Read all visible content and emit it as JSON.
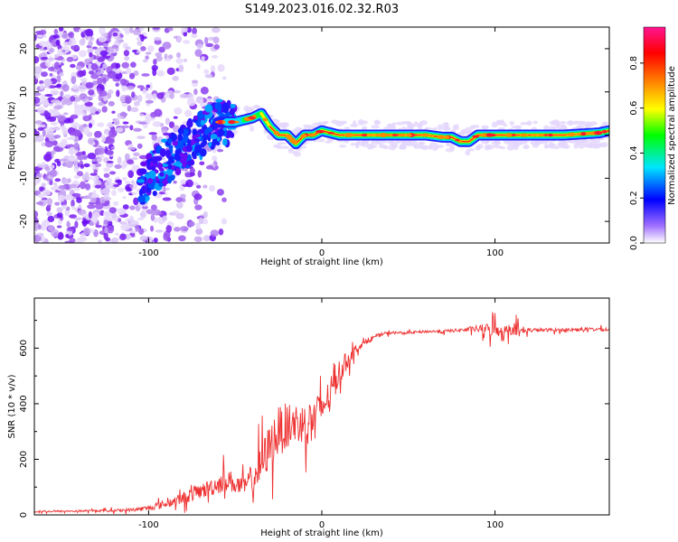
{
  "title": "S149.2023.016.02.32.R03",
  "chart_data": [
    {
      "type": "heatmap",
      "xlabel": "Height of straight line (km)",
      "ylabel": "Frequency (Hz)",
      "xlim": [
        -166,
        166
      ],
      "ylim": [
        -25,
        25
      ],
      "xticks": [
        -100,
        0,
        100
      ],
      "yticks": [
        -20,
        -10,
        0,
        10,
        20
      ],
      "colorbar": {
        "label": "Normalized spectral amplitude",
        "range": [
          0,
          0.96
        ],
        "ticks": [
          "0.0",
          "0.2",
          "0.4",
          "0.6",
          "0.8"
        ],
        "colors": [
          "#ffffff",
          "#8a2be2",
          "#0000ff",
          "#00e5ff",
          "#00ff00",
          "#ffff00",
          "#ff7f00",
          "#ff0000",
          "#ff1493"
        ]
      },
      "ridge": {
        "description_points_x": [
          -90,
          -80,
          -70,
          -60,
          -50,
          -40,
          -35,
          -30,
          -25,
          -20,
          -15,
          -10,
          -5,
          0,
          10,
          20,
          40,
          60,
          70,
          75,
          80,
          85,
          90,
          100,
          120,
          140,
          160,
          166
        ],
        "description_points_y": [
          -6,
          -3,
          0,
          3,
          3,
          4,
          5,
          2,
          0,
          0,
          -2,
          0,
          0,
          1,
          0,
          0,
          0,
          0,
          -0.5,
          -0.5,
          -1.5,
          -1.5,
          0,
          0,
          0,
          0,
          0.5,
          1
        ]
      }
    },
    {
      "type": "line",
      "xlabel": "Height of straight line (km)",
      "ylabel": "SNR (10 * v/v)",
      "xlim": [
        -166,
        166
      ],
      "ylim": [
        0,
        780
      ],
      "xticks": [
        -100,
        0,
        100
      ],
      "yticks": [
        0,
        200,
        400,
        600
      ],
      "series": [
        {
          "color": "#ee3030",
          "x": [
            -166,
            -150,
            -130,
            -120,
            -110,
            -100,
            -90,
            -80,
            -70,
            -60,
            -55,
            -50,
            -45,
            -40,
            -35,
            -30,
            -25,
            -20,
            -15,
            -10,
            -5,
            0,
            5,
            10,
            15,
            20,
            25,
            30,
            35,
            40,
            50,
            60,
            70,
            80,
            90,
            95,
            100,
            105,
            110,
            115,
            120,
            130,
            140,
            150,
            160,
            166
          ],
          "y": [
            12,
            13,
            15,
            16,
            18,
            25,
            40,
            60,
            85,
            110,
            130,
            110,
            100,
            130,
            180,
            250,
            300,
            320,
            330,
            330,
            350,
            380,
            440,
            510,
            560,
            600,
            620,
            640,
            650,
            655,
            655,
            660,
            660,
            665,
            670,
            665,
            670,
            660,
            675,
            660,
            665,
            665,
            665,
            668,
            668,
            665
          ],
          "noise_amplitude": [
            5,
            5,
            6,
            8,
            10,
            15,
            25,
            35,
            45,
            60,
            70,
            60,
            55,
            80,
            120,
            140,
            150,
            140,
            130,
            120,
            110,
            100,
            90,
            80,
            50,
            25,
            15,
            12,
            10,
            8,
            8,
            8,
            10,
            10,
            20,
            40,
            50,
            30,
            45,
            25,
            12,
            10,
            10,
            10,
            10,
            10
          ]
        }
      ]
    }
  ]
}
